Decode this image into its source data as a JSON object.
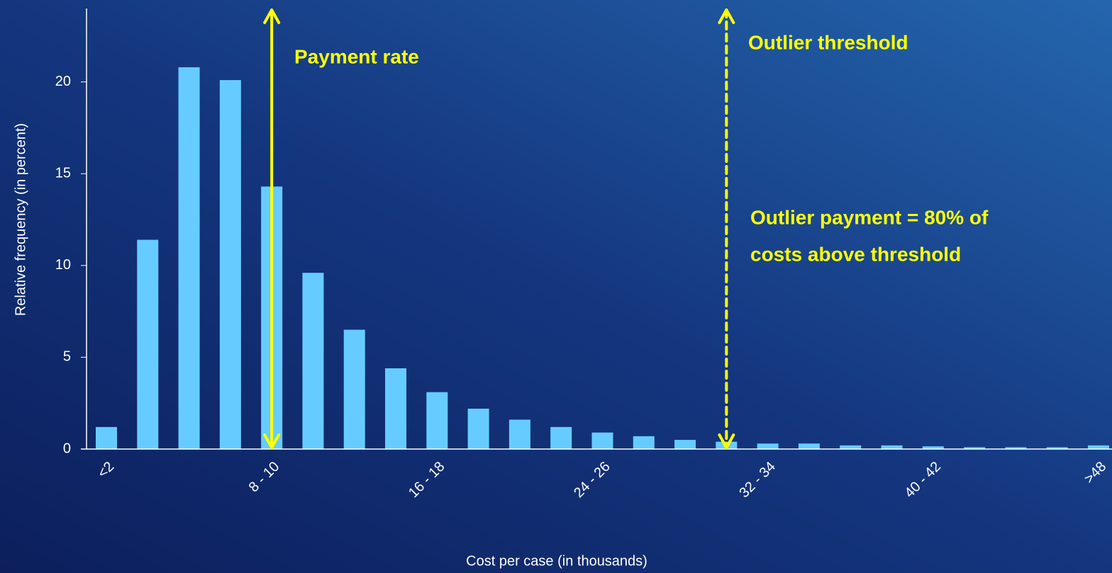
{
  "chart_data": {
    "type": "bar",
    "categories": [
      "<2",
      null,
      null,
      null,
      "8 - 10",
      null,
      null,
      null,
      "16 - 18",
      null,
      null,
      null,
      "24 - 26",
      null,
      null,
      null,
      "32 - 34",
      null,
      null,
      null,
      "40 - 42",
      null,
      null,
      null,
      ">48"
    ],
    "values": [
      1.2,
      11.4,
      20.8,
      20.1,
      14.3,
      9.6,
      6.5,
      4.4,
      3.1,
      2.2,
      1.6,
      1.2,
      0.9,
      0.7,
      0.5,
      0.4,
      0.3,
      0.3,
      0.2,
      0.2,
      0.15,
      0.1,
      0.1,
      0.1,
      0.2
    ],
    "color": "#66ccff",
    "ylim": [
      0,
      24
    ],
    "yticks": [
      0,
      5,
      10,
      15,
      20
    ],
    "grid": false,
    "xlabel": "Cost per case (in thousands)",
    "ylabel": "Relative frequency (in percent)",
    "annotations": {
      "payment": "Payment rate",
      "threshold": "Outlier threshold",
      "note": [
        "Outlier payment = 80% of",
        "costs above threshold"
      ]
    }
  }
}
